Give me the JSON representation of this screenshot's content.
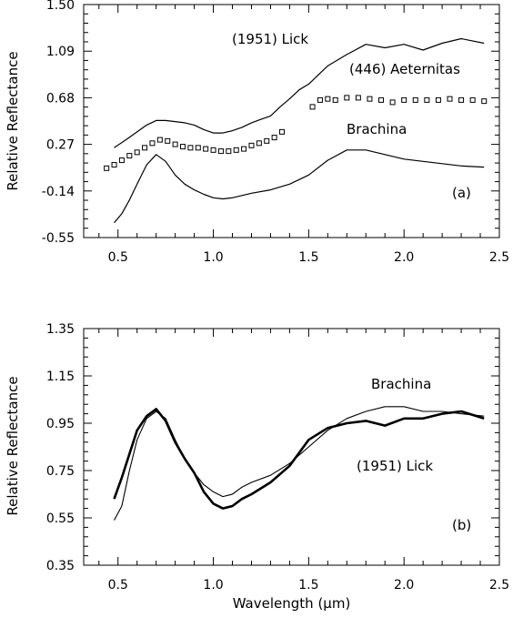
{
  "chart_data": [
    {
      "type": "line",
      "panel_label": "(a)",
      "ylabel": "Relative Reflectance",
      "xlabel": "",
      "xlim": [
        0.32,
        2.5
      ],
      "ylim": [
        -0.55,
        1.5
      ],
      "x_ticks": [
        "0.5",
        "1.0",
        "1.5",
        "2.0",
        "2.5"
      ],
      "y_ticks": [
        "-0.55",
        "-0.14",
        "0.27",
        "0.68",
        "1.09",
        "1.50"
      ],
      "annotations": [
        "(1951) Lick",
        "(446) Aeternitas",
        "Brachina"
      ],
      "series": [
        {
          "name": "(1951) Lick",
          "style": "thin-line",
          "x": [
            0.48,
            0.55,
            0.6,
            0.65,
            0.7,
            0.75,
            0.8,
            0.85,
            0.9,
            0.95,
            1.0,
            1.05,
            1.1,
            1.15,
            1.2,
            1.25,
            1.3,
            1.35,
            1.4,
            1.45,
            1.5,
            1.55,
            1.6,
            1.7,
            1.8,
            1.9,
            2.0,
            2.1,
            2.2,
            2.3,
            2.42
          ],
          "y": [
            0.24,
            0.32,
            0.38,
            0.44,
            0.48,
            0.48,
            0.47,
            0.46,
            0.44,
            0.4,
            0.37,
            0.37,
            0.39,
            0.42,
            0.46,
            0.49,
            0.52,
            0.6,
            0.67,
            0.75,
            0.8,
            0.88,
            0.96,
            1.06,
            1.15,
            1.12,
            1.15,
            1.1,
            1.16,
            1.2,
            1.16
          ]
        },
        {
          "name": "(446) Aeternitas",
          "style": "square-markers",
          "x": [
            0.44,
            0.48,
            0.52,
            0.56,
            0.6,
            0.64,
            0.68,
            0.72,
            0.76,
            0.8,
            0.84,
            0.88,
            0.92,
            0.96,
            1.0,
            1.04,
            1.08,
            1.12,
            1.16,
            1.2,
            1.24,
            1.28,
            1.32,
            1.36,
            1.52,
            1.56,
            1.6,
            1.64,
            1.7,
            1.76,
            1.82,
            1.88,
            1.94,
            2.0,
            2.06,
            2.12,
            2.18,
            2.24,
            2.3,
            2.36,
            2.42
          ],
          "y": [
            0.06,
            0.09,
            0.13,
            0.17,
            0.2,
            0.24,
            0.28,
            0.31,
            0.3,
            0.27,
            0.25,
            0.24,
            0.24,
            0.23,
            0.22,
            0.21,
            0.21,
            0.22,
            0.23,
            0.26,
            0.28,
            0.3,
            0.33,
            0.38,
            0.6,
            0.66,
            0.67,
            0.66,
            0.68,
            0.68,
            0.67,
            0.66,
            0.64,
            0.66,
            0.66,
            0.66,
            0.66,
            0.67,
            0.66,
            0.66,
            0.65
          ]
        },
        {
          "name": "Brachina",
          "style": "thin-line",
          "x": [
            0.48,
            0.52,
            0.56,
            0.6,
            0.65,
            0.7,
            0.75,
            0.8,
            0.85,
            0.9,
            0.95,
            1.0,
            1.05,
            1.1,
            1.15,
            1.2,
            1.3,
            1.4,
            1.5,
            1.6,
            1.7,
            1.8,
            1.9,
            2.0,
            2.1,
            2.2,
            2.3,
            2.42
          ],
          "y": [
            -0.42,
            -0.34,
            -0.22,
            -0.08,
            0.09,
            0.18,
            0.12,
            0.0,
            -0.08,
            -0.13,
            -0.17,
            -0.2,
            -0.21,
            -0.2,
            -0.18,
            -0.16,
            -0.13,
            -0.08,
            0.0,
            0.13,
            0.22,
            0.22,
            0.18,
            0.14,
            0.12,
            0.1,
            0.08,
            0.07
          ]
        }
      ]
    },
    {
      "type": "line",
      "panel_label": "(b)",
      "ylabel": "Relative Reflectance",
      "xlabel": "Wavelength (μm)",
      "xlim": [
        0.32,
        2.5
      ],
      "ylim": [
        0.35,
        1.35
      ],
      "x_ticks": [
        "0.5",
        "1.0",
        "1.5",
        "2.0",
        "2.5"
      ],
      "y_ticks": [
        "0.35",
        "0.55",
        "0.75",
        "0.95",
        "1.15",
        "1.35"
      ],
      "annotations": [
        "Brachina",
        "(1951) Lick"
      ],
      "series": [
        {
          "name": "Brachina",
          "style": "thin-line",
          "x": [
            0.48,
            0.52,
            0.56,
            0.6,
            0.65,
            0.7,
            0.75,
            0.8,
            0.85,
            0.9,
            0.95,
            1.0,
            1.05,
            1.1,
            1.15,
            1.2,
            1.3,
            1.4,
            1.5,
            1.6,
            1.7,
            1.8,
            1.9,
            2.0,
            2.1,
            2.2,
            2.3,
            2.42
          ],
          "y": [
            0.54,
            0.6,
            0.75,
            0.88,
            0.97,
            1.0,
            0.97,
            0.88,
            0.8,
            0.74,
            0.69,
            0.66,
            0.64,
            0.65,
            0.68,
            0.7,
            0.73,
            0.78,
            0.85,
            0.92,
            0.97,
            1.0,
            1.02,
            1.02,
            1.0,
            1.0,
            0.99,
            0.98
          ]
        },
        {
          "name": "(1951) Lick",
          "style": "thick-line",
          "x": [
            0.48,
            0.52,
            0.56,
            0.6,
            0.65,
            0.7,
            0.75,
            0.8,
            0.85,
            0.9,
            0.95,
            1.0,
            1.05,
            1.1,
            1.15,
            1.2,
            1.3,
            1.4,
            1.5,
            1.6,
            1.7,
            1.8,
            1.9,
            2.0,
            2.1,
            2.2,
            2.3,
            2.42
          ],
          "y": [
            0.63,
            0.72,
            0.82,
            0.92,
            0.98,
            1.01,
            0.96,
            0.87,
            0.8,
            0.74,
            0.66,
            0.61,
            0.59,
            0.6,
            0.63,
            0.65,
            0.7,
            0.77,
            0.88,
            0.93,
            0.95,
            0.96,
            0.94,
            0.97,
            0.97,
            0.99,
            1.0,
            0.97
          ]
        }
      ]
    }
  ]
}
